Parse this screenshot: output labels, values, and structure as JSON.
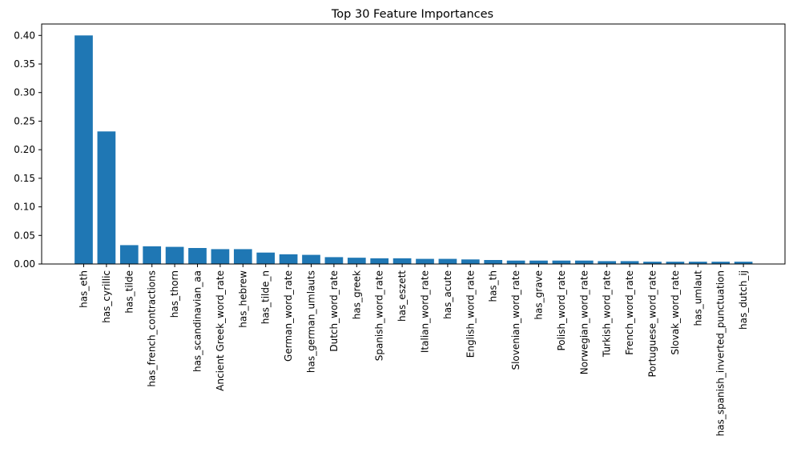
{
  "chart_data": {
    "type": "bar",
    "title": "Top 30 Feature Importances",
    "xlabel": "",
    "ylabel": "",
    "ylim": [
      0,
      0.42
    ],
    "yticks": [
      "0.00",
      "0.05",
      "0.10",
      "0.15",
      "0.20",
      "0.25",
      "0.30",
      "0.35",
      "0.40"
    ],
    "bar_color": "#1f77b4",
    "grid": false,
    "categories": [
      "has_eth",
      "has_cyrillic",
      "has_tilde",
      "has_french_contractions",
      "has_thorn",
      "has_scandinavian_aa",
      "Ancient Greek_word_rate",
      "has_hebrew",
      "has_tilde_n",
      "German_word_rate",
      "has_german_umlauts",
      "Dutch_word_rate",
      "has_greek",
      "Spanish_word_rate",
      "has_eszett",
      "Italian_word_rate",
      "has_acute",
      "English_word_rate",
      "has_th",
      "Slovenian_word_rate",
      "has_grave",
      "Polish_word_rate",
      "Norwegian_word_rate",
      "Turkish_word_rate",
      "French_word_rate",
      "Portuguese_word_rate",
      "Slovak_word_rate",
      "has_umlaut",
      "has_spanish_inverted_punctuation",
      "has_dutch_ij"
    ],
    "values": [
      0.4,
      0.232,
      0.033,
      0.031,
      0.03,
      0.028,
      0.026,
      0.026,
      0.02,
      0.017,
      0.016,
      0.012,
      0.011,
      0.01,
      0.01,
      0.009,
      0.009,
      0.008,
      0.007,
      0.006,
      0.006,
      0.006,
      0.006,
      0.005,
      0.005,
      0.004,
      0.004,
      0.004,
      0.004,
      0.004
    ]
  }
}
